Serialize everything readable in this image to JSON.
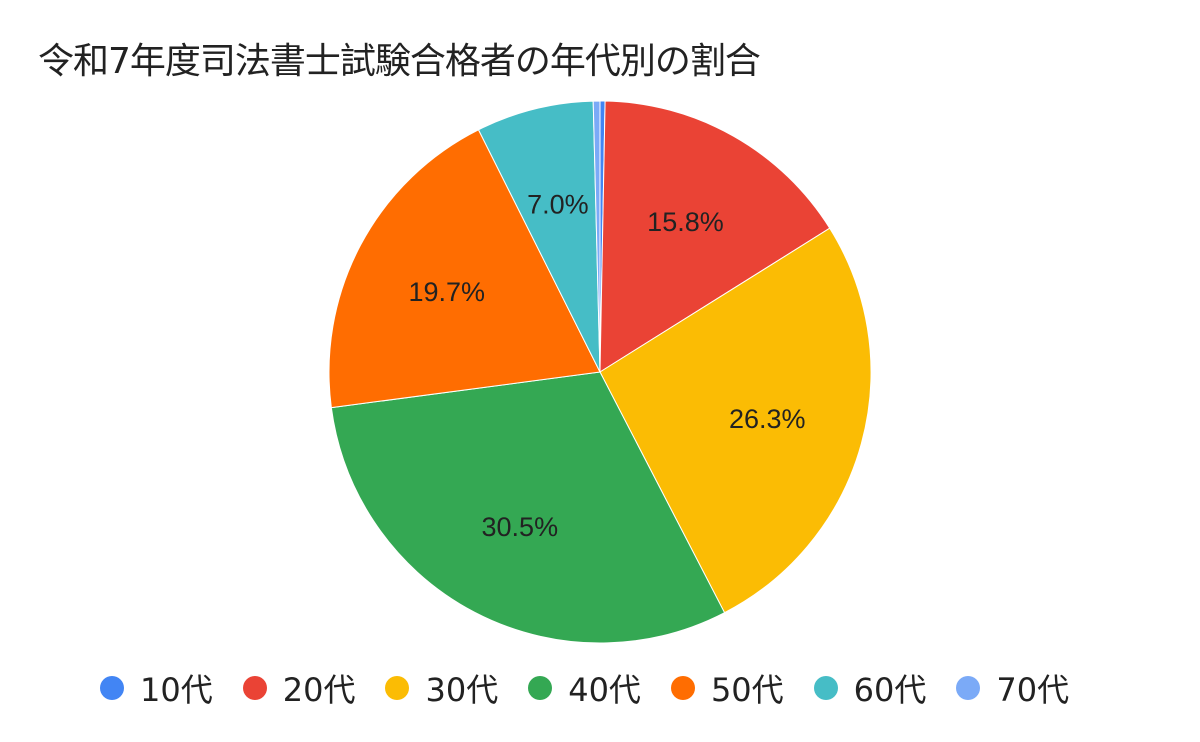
{
  "chart_data": {
    "type": "pie",
    "title": "令和7年度司法書士試験合格者の年代別の割合",
    "categories": [
      "10代",
      "20代",
      "30代",
      "40代",
      "50代",
      "60代",
      "70代"
    ],
    "values": [
      0.3,
      15.8,
      26.3,
      30.5,
      19.7,
      7.0,
      0.4
    ],
    "data_labels": [
      "",
      "15.8%",
      "26.3%",
      "30.5%",
      "19.7%",
      "7.0%",
      ""
    ],
    "colors": [
      "#4285f4",
      "#ea4335",
      "#fbbc04",
      "#34a853",
      "#ff6d01",
      "#46bdc6",
      "#7baaf7"
    ],
    "start_angle": "12 o'clock, clockwise",
    "legend_position": "bottom"
  },
  "title": "令和7年度司法書士試験合格者の年代別の割合",
  "legend": [
    {
      "label": "10代",
      "color": "#4285f4"
    },
    {
      "label": "20代",
      "color": "#ea4335"
    },
    {
      "label": "30代",
      "color": "#fbbc04"
    },
    {
      "label": "40代",
      "color": "#34a853"
    },
    {
      "label": "50代",
      "color": "#ff6d01"
    },
    {
      "label": "60代",
      "color": "#46bdc6"
    },
    {
      "label": "70代",
      "color": "#7baaf7"
    }
  ]
}
